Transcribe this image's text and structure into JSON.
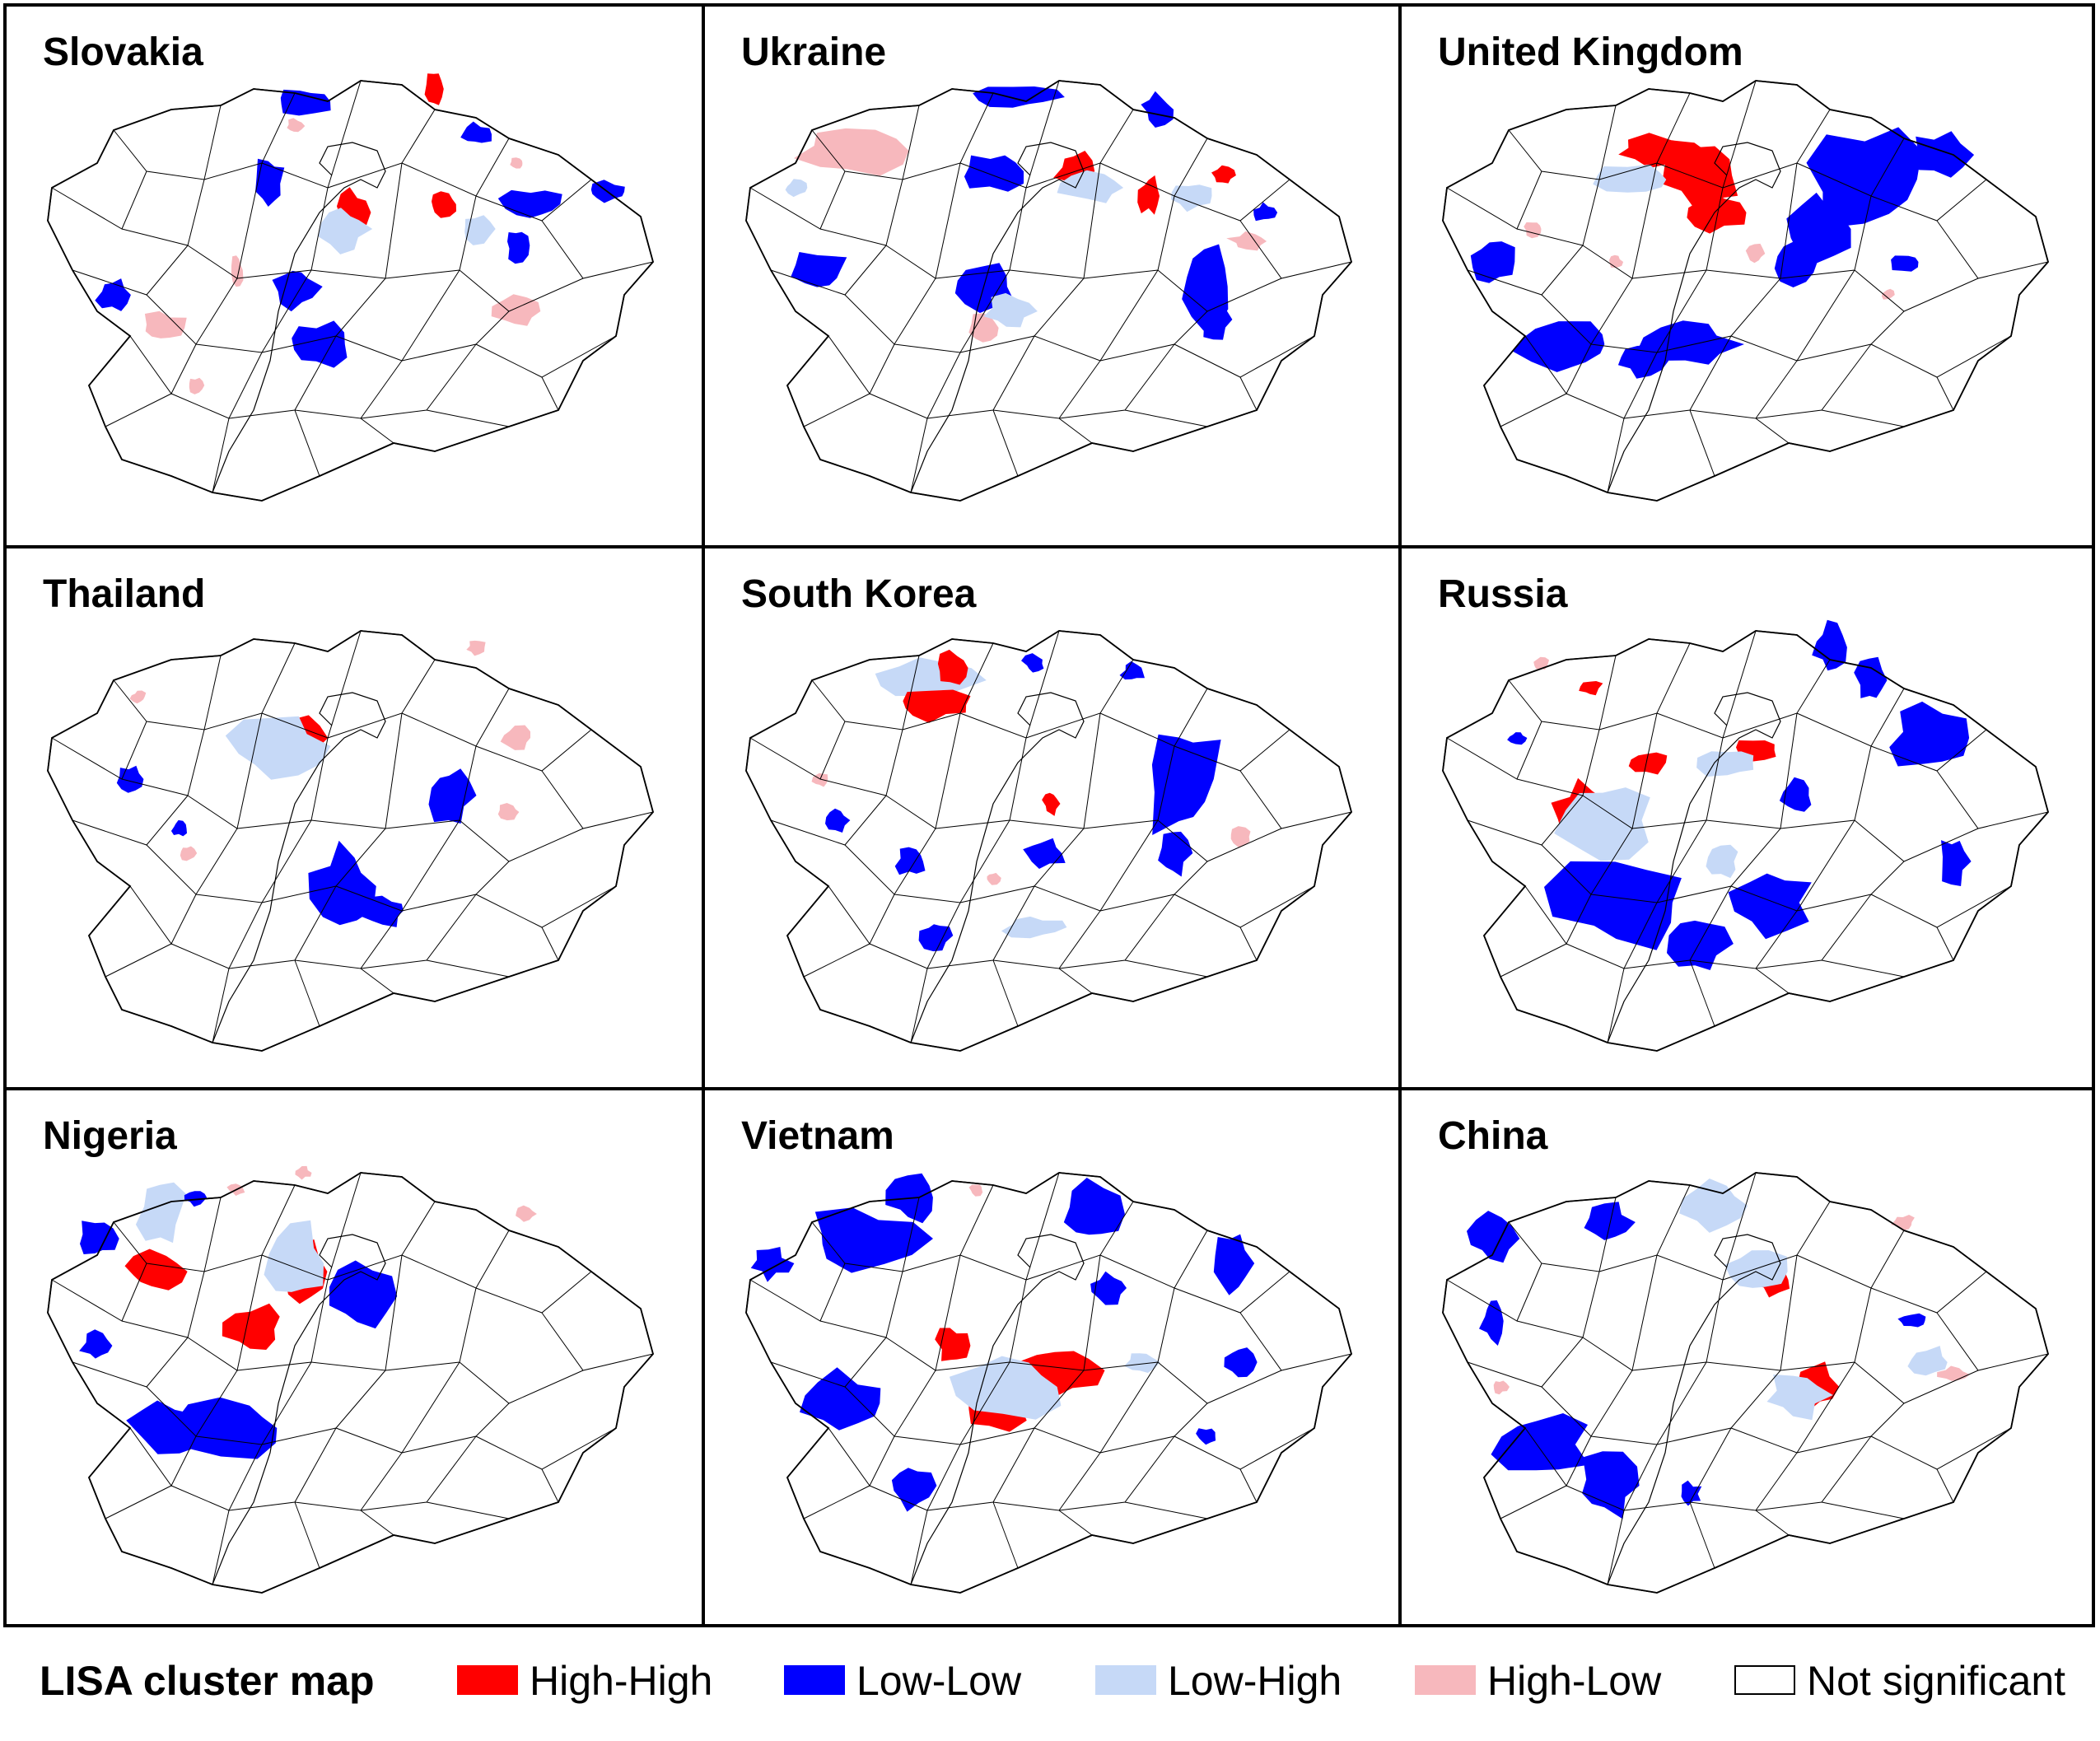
{
  "legend": {
    "title": "LISA cluster map",
    "items": [
      {
        "label": "High-High",
        "color": "#ff0000"
      },
      {
        "label": "Low-Low",
        "color": "#0000ff"
      },
      {
        "label": "Low-High",
        "color": "#c6d9f7"
      },
      {
        "label": "High-Low",
        "color": "#f7b8bd"
      },
      {
        "label": "Not significant",
        "color": "#ffffff"
      }
    ]
  },
  "panels": [
    {
      "title": "Slovakia"
    },
    {
      "title": "Ukraine"
    },
    {
      "title": "United Kingdom"
    },
    {
      "title": "Thailand"
    },
    {
      "title": "South Korea"
    },
    {
      "title": "Russia"
    },
    {
      "title": "Nigeria"
    },
    {
      "title": "Vietnam"
    },
    {
      "title": "China"
    }
  ]
}
